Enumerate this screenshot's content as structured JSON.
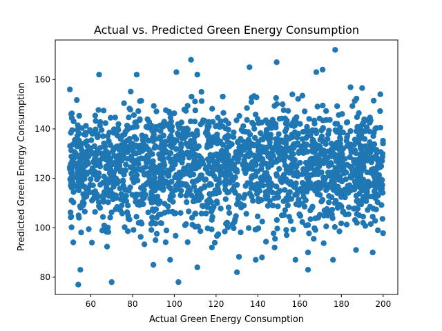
{
  "chart_data": {
    "type": "scatter",
    "title": "Actual vs. Predicted Green  Energy Consumption",
    "xlabel": "Actual Green Energy Consumption",
    "ylabel": "Predicted Green Energy Consumption",
    "xlim": [
      43,
      207
    ],
    "ylim": [
      73,
      176
    ],
    "xticks": [
      60,
      80,
      100,
      120,
      140,
      160,
      180,
      200
    ],
    "yticks": [
      80,
      100,
      120,
      140,
      160
    ],
    "grid": false,
    "color": "#1f77b4",
    "approx_point_count": 2000,
    "x_range": [
      50,
      200
    ],
    "y_center": 125,
    "y_spread": 12,
    "points": [
      [
        177,
        172
      ],
      [
        108,
        168
      ],
      [
        149,
        167
      ],
      [
        171,
        164
      ],
      [
        136,
        165
      ],
      [
        168,
        163
      ],
      [
        101,
        163
      ],
      [
        64,
        162
      ],
      [
        111,
        162
      ],
      [
        82,
        162
      ],
      [
        50,
        156
      ],
      [
        113,
        155
      ],
      [
        54,
        77
      ],
      [
        70,
        78
      ],
      [
        102,
        78
      ],
      [
        130,
        82
      ],
      [
        164,
        83
      ],
      [
        55,
        83
      ],
      [
        158,
        87
      ],
      [
        98,
        87
      ],
      [
        139,
        87
      ],
      [
        176,
        87
      ],
      [
        90,
        85
      ],
      [
        111,
        84
      ],
      [
        195,
        90
      ],
      [
        164,
        90
      ],
      [
        148,
        92
      ],
      [
        187,
        91
      ],
      [
        118,
        92
      ],
      [
        91,
        95
      ]
    ]
  }
}
